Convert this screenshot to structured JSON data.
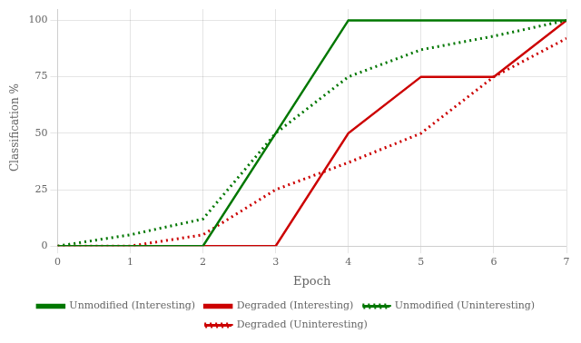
{
  "chart_data": {
    "type": "line",
    "xlabel": "Epoch",
    "ylabel": "Classification %",
    "series": [
      {
        "name": "Unmodified (Interesting)",
        "color": "#007700",
        "line_style": "solid",
        "x": [
          0,
          2,
          3,
          4,
          5,
          7
        ],
        "values": [
          0,
          0,
          50,
          100,
          100,
          100
        ]
      },
      {
        "name": "Degraded (Interesting)",
        "color": "#cc0000",
        "line_style": "solid",
        "x": [
          0,
          3,
          4,
          5,
          6,
          7
        ],
        "values": [
          0,
          0,
          50,
          75,
          75,
          100
        ]
      },
      {
        "name": "Unmodified (Uninteresting)",
        "color": "#007700",
        "line_style": "dotted",
        "x": [
          0,
          1,
          2,
          3,
          4,
          5,
          6,
          7
        ],
        "values": [
          0,
          5,
          12,
          50,
          75,
          87,
          93,
          100
        ]
      },
      {
        "name": "Degraded (Uninteresting)",
        "color": "#cc0000",
        "line_style": "dotted",
        "x": [
          0,
          1,
          2,
          3,
          4,
          5,
          6,
          7
        ],
        "values": [
          0,
          0,
          5,
          25,
          37,
          50,
          75,
          92
        ]
      }
    ],
    "xlim": [
      0,
      7
    ],
    "ylim": [
      0,
      105
    ],
    "xticks": [
      0,
      1,
      2,
      3,
      4,
      5,
      6,
      7
    ],
    "yticks": [
      0,
      25,
      50,
      75,
      100
    ],
    "grid": true,
    "legend": "bottom"
  }
}
